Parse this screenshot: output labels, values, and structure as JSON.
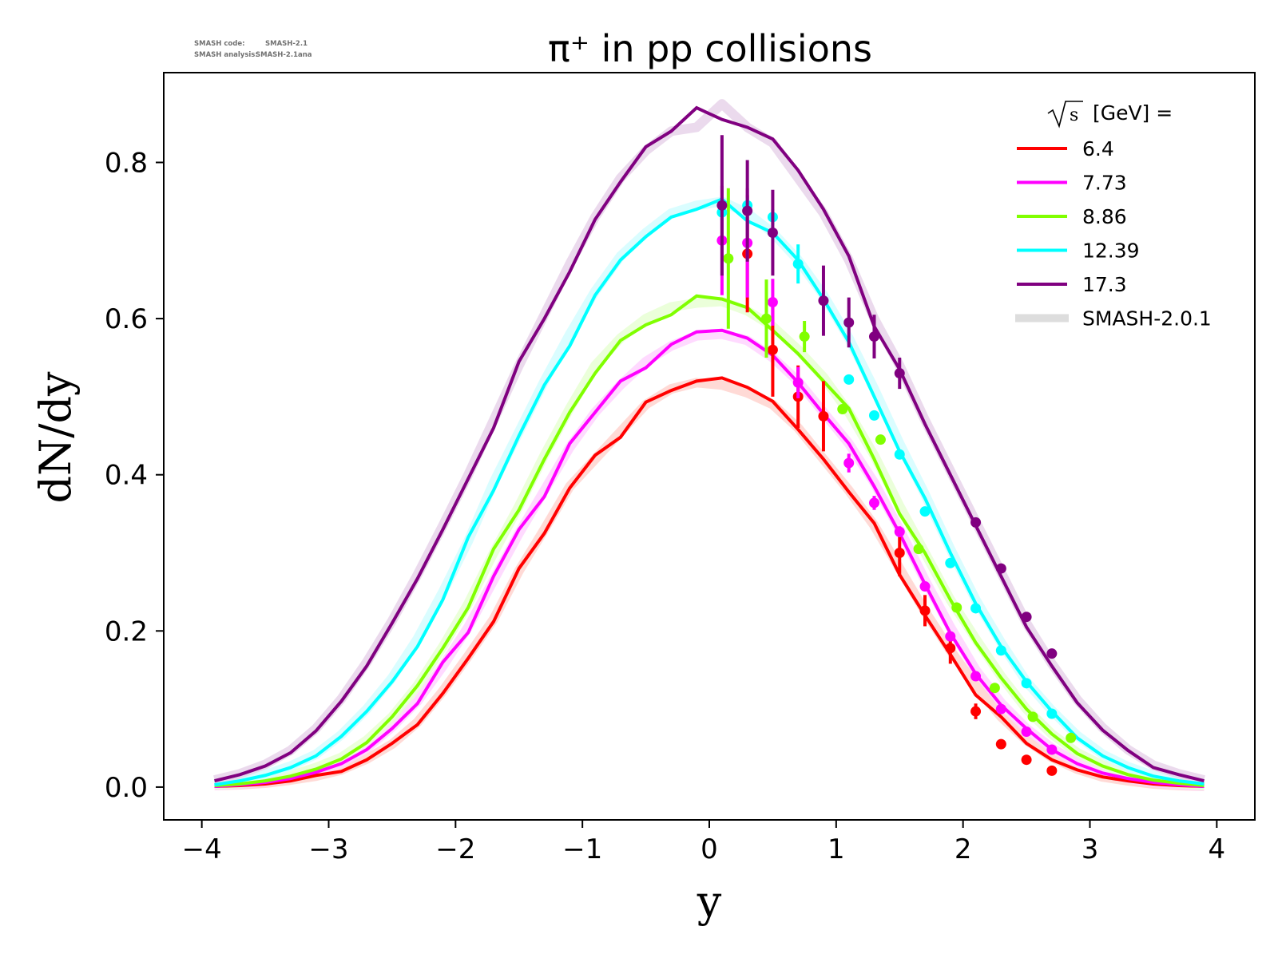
{
  "watermark": {
    "line1_label": "SMASH code:",
    "line1_value": "SMASH-2.1",
    "line2_label": "SMASH analysis:",
    "line2_value": "SMASH-2.1ana"
  },
  "chart_data": {
    "type": "line",
    "title": "π⁺ in pp collisions",
    "xlabel": "y",
    "ylabel": "dN/dy",
    "xlim": [
      -4.3,
      4.3
    ],
    "ylim": [
      -0.042,
      0.915
    ],
    "xticks": [
      -4,
      -3,
      -2,
      -1,
      0,
      1,
      2,
      3,
      4
    ],
    "xtick_labels": [
      "−4",
      "−3",
      "−2",
      "−1",
      "0",
      "1",
      "2",
      "3",
      "4"
    ],
    "yticks": [
      0.0,
      0.2,
      0.4,
      0.6,
      0.8
    ],
    "ytick_labels": [
      "0.0",
      "0.2",
      "0.4",
      "0.6",
      "0.8"
    ],
    "grid": false,
    "legend": {
      "placement": "top-right",
      "title_sqrt": "s",
      "title_rest": " [GeV] =",
      "entries": [
        "6.4",
        "7.73",
        "8.86",
        "12.39",
        "17.3",
        "SMASH-2.0.1"
      ]
    },
    "x": [
      -3.9,
      -3.7,
      -3.5,
      -3.3,
      -3.1,
      -2.9,
      -2.7,
      -2.5,
      -2.3,
      -2.1,
      -1.9,
      -1.7,
      -1.5,
      -1.3,
      -1.1,
      -0.9,
      -0.7,
      -0.5,
      -0.3,
      -0.1,
      0.1,
      0.3,
      0.5,
      0.7,
      0.9,
      1.1,
      1.3,
      1.5,
      1.7,
      1.9,
      2.1,
      2.3,
      2.5,
      2.7,
      2.9,
      3.1,
      3.3,
      3.5,
      3.7,
      3.9
    ],
    "series": [
      {
        "name": "6.4",
        "color": "#ff0000",
        "band_color": "#ffd3cf",
        "values": [
          0.001,
          0.002,
          0.004,
          0.008,
          0.015,
          0.02,
          0.035,
          0.056,
          0.08,
          0.12,
          0.165,
          0.212,
          0.28,
          0.325,
          0.383,
          0.425,
          0.448,
          0.493,
          0.508,
          0.52,
          0.524,
          0.512,
          0.494,
          0.458,
          0.42,
          0.378,
          0.338,
          0.272,
          0.22,
          0.17,
          0.118,
          0.09,
          0.056,
          0.035,
          0.022,
          0.013,
          0.008,
          0.004,
          0.002,
          0.001
        ],
        "smash201": [
          0.002,
          0.003,
          0.005,
          0.009,
          0.014,
          0.022,
          0.036,
          0.055,
          0.083,
          0.123,
          0.168,
          0.215,
          0.277,
          0.33,
          0.385,
          0.42,
          0.455,
          0.49,
          0.51,
          0.518,
          0.515,
          0.505,
          0.49,
          0.46,
          0.42,
          0.38,
          0.335,
          0.28,
          0.225,
          0.175,
          0.13,
          0.09,
          0.06,
          0.038,
          0.023,
          0.013,
          0.008,
          0.004,
          0.002,
          0.001
        ],
        "points": {
          "x": [
            0.3,
            0.5,
            0.7,
            0.9,
            1.5,
            1.7,
            1.9,
            2.1,
            2.3,
            2.5,
            2.7
          ],
          "y": [
            0.683,
            0.56,
            0.5,
            0.475,
            0.3,
            0.226,
            0.178,
            0.097,
            0.055,
            0.035,
            0.021
          ],
          "err": [
            0.075,
            0.06,
            0.04,
            0.045,
            0.03,
            0.02,
            0.02,
            0.01,
            0.005,
            0.004,
            0.004
          ]
        }
      },
      {
        "name": "7.73",
        "color": "#ff00ff",
        "band_color": "#ffd4ff",
        "values": [
          0.001,
          0.003,
          0.006,
          0.011,
          0.019,
          0.03,
          0.048,
          0.075,
          0.107,
          0.16,
          0.198,
          0.27,
          0.33,
          0.372,
          0.44,
          0.48,
          0.52,
          0.537,
          0.567,
          0.583,
          0.585,
          0.575,
          0.553,
          0.518,
          0.478,
          0.44,
          0.385,
          0.325,
          0.26,
          0.197,
          0.145,
          0.105,
          0.075,
          0.048,
          0.03,
          0.018,
          0.011,
          0.006,
          0.003,
          0.001
        ],
        "smash201": [
          0.002,
          0.004,
          0.007,
          0.012,
          0.02,
          0.031,
          0.05,
          0.077,
          0.11,
          0.155,
          0.205,
          0.265,
          0.325,
          0.38,
          0.435,
          0.48,
          0.515,
          0.545,
          0.565,
          0.578,
          0.58,
          0.572,
          0.55,
          0.52,
          0.48,
          0.44,
          0.39,
          0.33,
          0.265,
          0.205,
          0.15,
          0.108,
          0.075,
          0.05,
          0.031,
          0.019,
          0.011,
          0.006,
          0.003,
          0.001
        ],
        "points": {
          "x": [
            0.1,
            0.3,
            0.5,
            0.7,
            1.1,
            1.3,
            1.5,
            1.7,
            1.9,
            2.1,
            2.3,
            2.5,
            2.7
          ],
          "y": [
            0.7,
            0.697,
            0.621,
            0.518,
            0.415,
            0.364,
            0.327,
            0.257,
            0.193,
            0.142,
            0.1,
            0.071,
            0.048
          ],
          "err": [
            0.07,
            0.07,
            0.03,
            0.02,
            0.012,
            0.009,
            0.007,
            0.006,
            0.005,
            0.004,
            0.004,
            0.003,
            0.003
          ]
        }
      },
      {
        "name": "8.86",
        "color": "#80ff00",
        "band_color": "#e8ffd4",
        "values": [
          0.002,
          0.004,
          0.008,
          0.014,
          0.023,
          0.036,
          0.057,
          0.09,
          0.13,
          0.178,
          0.23,
          0.305,
          0.355,
          0.42,
          0.48,
          0.53,
          0.572,
          0.592,
          0.605,
          0.629,
          0.625,
          0.614,
          0.585,
          0.555,
          0.52,
          0.485,
          0.42,
          0.35,
          0.3,
          0.24,
          0.185,
          0.14,
          0.1,
          0.068,
          0.043,
          0.027,
          0.016,
          0.009,
          0.005,
          0.002
        ],
        "smash201": [
          0.003,
          0.005,
          0.009,
          0.015,
          0.025,
          0.038,
          0.06,
          0.09,
          0.13,
          0.18,
          0.235,
          0.3,
          0.36,
          0.425,
          0.485,
          0.54,
          0.575,
          0.6,
          0.615,
          0.62,
          0.622,
          0.61,
          0.59,
          0.56,
          0.525,
          0.48,
          0.425,
          0.36,
          0.3,
          0.24,
          0.19,
          0.142,
          0.1,
          0.068,
          0.044,
          0.028,
          0.016,
          0.009,
          0.005,
          0.002
        ],
        "points": {
          "x": [
            0.15,
            0.45,
            0.75,
            1.05,
            1.35,
            1.65,
            1.95,
            2.25,
            2.55,
            2.85
          ],
          "y": [
            0.677,
            0.6,
            0.577,
            0.484,
            0.445,
            0.305,
            0.23,
            0.127,
            0.09,
            0.063
          ],
          "err": [
            0.09,
            0.05,
            0.02,
            0.006,
            0.005,
            0.004,
            0.004,
            0.003,
            0.003,
            0.003
          ]
        }
      },
      {
        "name": "12.39",
        "color": "#00ffff",
        "band_color": "#d3fdff",
        "values": [
          0.003,
          0.008,
          0.015,
          0.025,
          0.04,
          0.065,
          0.097,
          0.135,
          0.18,
          0.24,
          0.32,
          0.38,
          0.45,
          0.515,
          0.565,
          0.63,
          0.675,
          0.705,
          0.73,
          0.74,
          0.753,
          0.725,
          0.71,
          0.675,
          0.625,
          0.57,
          0.5,
          0.43,
          0.37,
          0.3,
          0.235,
          0.18,
          0.135,
          0.097,
          0.063,
          0.04,
          0.025,
          0.014,
          0.008,
          0.004
        ],
        "smash201": [
          0.004,
          0.009,
          0.016,
          0.027,
          0.042,
          0.067,
          0.1,
          0.14,
          0.19,
          0.25,
          0.315,
          0.39,
          0.455,
          0.52,
          0.58,
          0.635,
          0.68,
          0.71,
          0.735,
          0.745,
          0.75,
          0.735,
          0.71,
          0.675,
          0.63,
          0.575,
          0.51,
          0.44,
          0.375,
          0.305,
          0.24,
          0.185,
          0.135,
          0.098,
          0.066,
          0.042,
          0.026,
          0.015,
          0.008,
          0.004
        ],
        "points": {
          "x": [
            0.1,
            0.3,
            0.5,
            0.7,
            1.1,
            1.3,
            1.5,
            1.7,
            1.9,
            2.1,
            2.3,
            2.5,
            2.7
          ],
          "y": [
            0.736,
            0.745,
            0.73,
            0.67,
            0.522,
            0.476,
            0.426,
            0.353,
            0.287,
            0.229,
            0.175,
            0.133,
            0.094
          ],
          "err": [
            0.01,
            0.01,
            0.01,
            0.025,
            0.005,
            0.004,
            0.004,
            0.004,
            0.003,
            0.003,
            0.003,
            0.003,
            0.003
          ]
        }
      },
      {
        "name": "17.3",
        "color": "#800080",
        "band_color": "#e8d4ea",
        "values": [
          0.008,
          0.016,
          0.027,
          0.044,
          0.072,
          0.11,
          0.155,
          0.21,
          0.267,
          0.33,
          0.395,
          0.46,
          0.545,
          0.6,
          0.66,
          0.727,
          0.775,
          0.82,
          0.84,
          0.87,
          0.855,
          0.845,
          0.83,
          0.79,
          0.74,
          0.68,
          0.59,
          0.535,
          0.465,
          0.4,
          0.335,
          0.27,
          0.205,
          0.155,
          0.108,
          0.073,
          0.047,
          0.025,
          0.016,
          0.008
        ],
        "smash201": [
          0.009,
          0.017,
          0.029,
          0.047,
          0.075,
          0.113,
          0.16,
          0.213,
          0.272,
          0.335,
          0.4,
          0.47,
          0.54,
          0.605,
          0.67,
          0.73,
          0.78,
          0.815,
          0.84,
          0.845,
          0.875,
          0.845,
          0.825,
          0.78,
          0.735,
          0.675,
          0.6,
          0.54,
          0.47,
          0.405,
          0.34,
          0.275,
          0.21,
          0.158,
          0.112,
          0.076,
          0.048,
          0.028,
          0.017,
          0.009
        ],
        "points": {
          "x": [
            0.1,
            0.3,
            0.5,
            0.9,
            1.1,
            1.3,
            1.5,
            2.1,
            2.3,
            2.5,
            2.7
          ],
          "y": [
            0.745,
            0.738,
            0.71,
            0.623,
            0.595,
            0.577,
            0.53,
            0.339,
            0.28,
            0.218,
            0.171
          ],
          "err": [
            0.09,
            0.065,
            0.055,
            0.045,
            0.032,
            0.028,
            0.02,
            0.005,
            0.005,
            0.004,
            0.004
          ]
        }
      }
    ]
  }
}
